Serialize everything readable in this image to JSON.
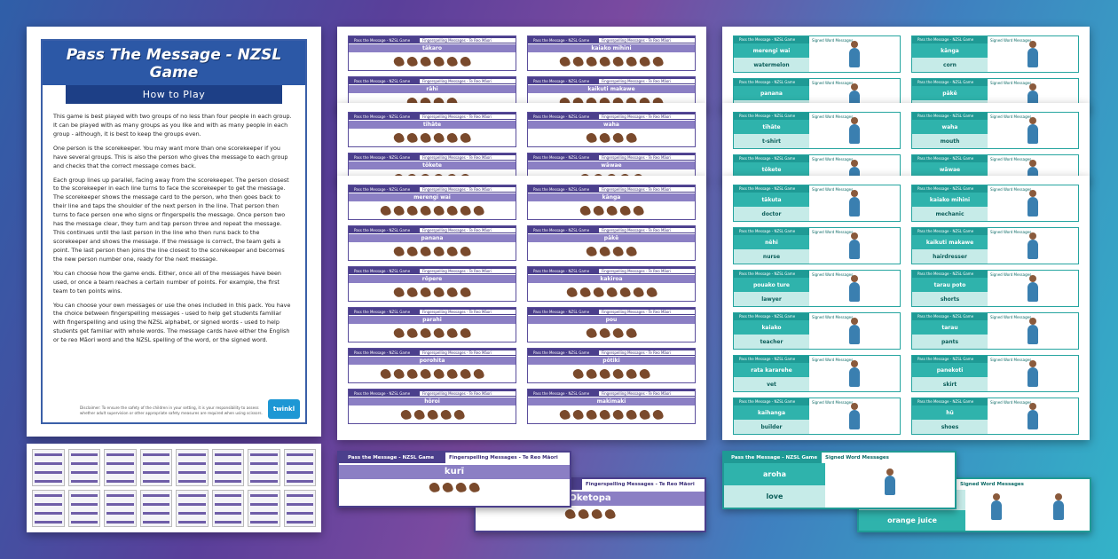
{
  "howto": {
    "title": "Pass The Message - NZSL Game",
    "subtitle": "How to Play",
    "paragraphs": [
      "This game is best played with two groups of no less than four people in each group. It can be played with as many groups as you like and with as many people in each group - although, it is best to keep the groups even.",
      "One person is the scorekeeper. You may want more than one scorekeeper if you have several groups. This is also the person who gives the message to each group and checks that the correct message comes back.",
      "Each group lines up parallel, facing away from the scorekeeper. The person closest to the scorekeeper in each line turns to face the scorekeeper to get the message. The scorekeeper shows the message card to the person, who then goes back to their line and taps the shoulder of the next person in the line. That person then turns to face person one who signs or fingerspells the message. Once person two has the message clear, they turn and tap person three and repeat the message. This continues until the last person in the line who then runs back to the scorekeeper and shows the message. If the message is correct, the team gets a point. The last person then joins the line closest to the scorekeeper and becomes the new person number one, ready for the next message.",
      "You can choose how the game ends. Either, once all of the messages have been used, or once a team reaches a certain number of points. For example, the first team to ten points wins.",
      "You can choose your own messages or use the ones included in this pack. You have the choice between fingerspelling messages - used to help get students familiar with fingerspelling and using the NZSL alphabet, or signed words - used to help students get familiar with whole words. The message cards have either the English or te reo Māori word and the NZSL spelling of the word, or the signed word."
    ],
    "disclaimer": "Disclaimer: To ensure the safety of the children in your setting, it is your responsibility to assess whether adult supervision or other appropriate safety measures are required when using scissors.",
    "logo": "twinkl"
  },
  "card_header": {
    "game": "Pass the Message - NZSL Game",
    "finger": "Fingerspelling Messages - Te Reo Māori",
    "signed": "Signed Word Messages"
  },
  "purple_sheet_1": [
    "tākaro",
    "kaiako mihini",
    "rāhi",
    "kaikuti makawe"
  ],
  "purple_sheet_2": [
    "tīhāte",
    "waha",
    "tōkete",
    "wāwae"
  ],
  "purple_sheet_3": [
    "merengi wai",
    "kānga",
    "panana",
    "pākē",
    "rōpere",
    "kakiroa",
    "parahi",
    "pou",
    "porohita",
    "pōtiki",
    "hōroi",
    "makimaki"
  ],
  "teal_sheet_1": [
    {
      "a": "merengi wai",
      "b": "watermelon"
    },
    {
      "a": "kānga",
      "b": "corn"
    },
    {
      "a": "panana",
      "b": ""
    },
    {
      "a": "pākē",
      "b": ""
    }
  ],
  "teal_sheet_2": [
    {
      "a": "tīhāte",
      "b": "t-shirt"
    },
    {
      "a": "waha",
      "b": "mouth"
    },
    {
      "a": "tōkete",
      "b": ""
    },
    {
      "a": "wāwae",
      "b": ""
    }
  ],
  "teal_sheet_3": [
    {
      "a": "tākuta",
      "b": "doctor"
    },
    {
      "a": "kaiako mihini",
      "b": "mechanic"
    },
    {
      "a": "nēhi",
      "b": "nurse"
    },
    {
      "a": "kaikuti makawe",
      "b": "hairdresser"
    },
    {
      "a": "pouako ture",
      "b": "lawyer"
    },
    {
      "a": "tarau poto",
      "b": "shorts"
    },
    {
      "a": "kaiako",
      "b": "teacher"
    },
    {
      "a": "tarau",
      "b": "pants"
    },
    {
      "a": "rata kararehe",
      "b": "vet"
    },
    {
      "a": "panekoti",
      "b": "skirt"
    },
    {
      "a": "kaihanga",
      "b": "builder"
    },
    {
      "a": "hū",
      "b": "shoes"
    }
  ],
  "big_cards": {
    "kuri": "kurī",
    "oketopa": "Oketopa",
    "aroha": "aroha",
    "love": "love",
    "orange": "orange juice"
  }
}
